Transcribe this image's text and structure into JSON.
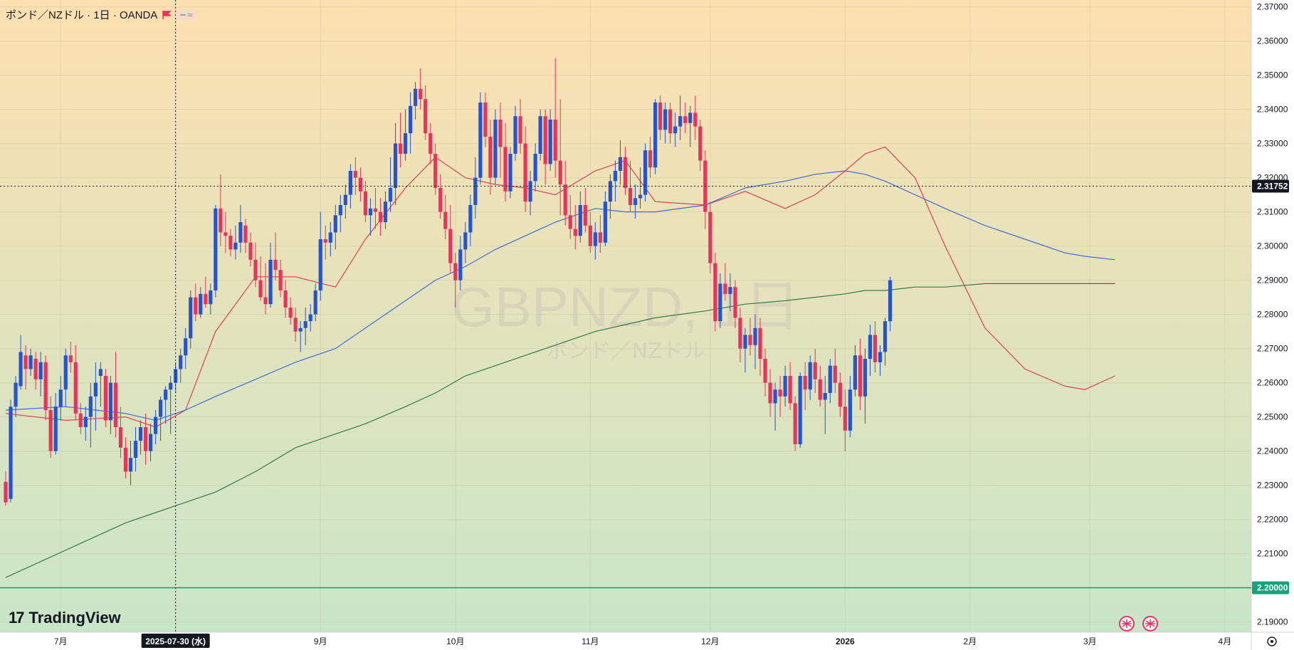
{
  "header": {
    "title": "ポンド／NZドル · 1日 · OANDA",
    "pill_minus": "━",
    "pill_wave": "≈"
  },
  "watermark": {
    "symbol": "GBPNZD, 1日",
    "name": "ポンド／NZドル"
  },
  "branding": {
    "logo_mark": "17",
    "logo_text": "TradingView"
  },
  "colors": {
    "up": "#2454d3",
    "down": "#e8345a",
    "ma_short": "#e0405a",
    "ma_mid": "#3b6de0",
    "ma_long": "#2e7d4f",
    "hline": "#14a37a",
    "bg_top": "#fde0b0",
    "bg_bottom": "#c9e6c8"
  },
  "crosshair": {
    "date_label": "2025-07-30 (水)",
    "price_label": "2.31752"
  },
  "chart_data": {
    "type": "candlestick",
    "ylim": [
      2.187,
      2.372
    ],
    "yticks": [
      2.19,
      2.2,
      2.21,
      2.22,
      2.23,
      2.24,
      2.25,
      2.26,
      2.27,
      2.28,
      2.29,
      2.3,
      2.31,
      2.32,
      2.33,
      2.34,
      2.35,
      2.36,
      2.37
    ],
    "ytick_labels": [
      "2.19000",
      "2.20000",
      "2.21000",
      "2.22000",
      "2.23000",
      "2.24000",
      "2.25000",
      "2.26000",
      "2.27000",
      "2.28000",
      "2.29000",
      "2.30000",
      "2.31000",
      "2.32000",
      "2.33000",
      "2.34000",
      "2.35000",
      "2.36000",
      "2.37000"
    ],
    "xaxis": [
      {
        "label": "7月",
        "bar": 11
      },
      {
        "label": "2025-07-30 (水)",
        "bar": 34
      },
      {
        "label": "9月",
        "bar": 63
      },
      {
        "label": "10月",
        "bar": 90
      },
      {
        "label": "11月",
        "bar": 117
      },
      {
        "label": "12月",
        "bar": 141
      },
      {
        "label": "2026",
        "bar": 168
      },
      {
        "label": "2月",
        "bar": 193
      },
      {
        "label": "3月",
        "bar": 217
      },
      {
        "label": "4月",
        "bar": 244
      }
    ],
    "horizontal_line": {
      "value": 2.2,
      "label": "2.20000"
    },
    "crosshair_value": 2.31752,
    "candles": [
      [
        2.231,
        2.234,
        2.224,
        2.225
      ],
      [
        2.226,
        2.255,
        2.225,
        2.253
      ],
      [
        2.253,
        2.262,
        2.25,
        2.26
      ],
      [
        2.259,
        2.274,
        2.258,
        2.269
      ],
      [
        2.268,
        2.271,
        2.258,
        2.264
      ],
      [
        2.264,
        2.27,
        2.262,
        2.268
      ],
      [
        2.267,
        2.269,
        2.258,
        2.261
      ],
      [
        2.261,
        2.269,
        2.256,
        2.266
      ],
      [
        2.266,
        2.268,
        2.249,
        2.252
      ],
      [
        2.252,
        2.256,
        2.238,
        2.24
      ],
      [
        2.24,
        2.257,
        2.239,
        2.253
      ],
      [
        2.253,
        2.262,
        2.249,
        2.258
      ],
      [
        2.258,
        2.27,
        2.253,
        2.268
      ],
      [
        2.268,
        2.272,
        2.263,
        2.266
      ],
      [
        2.266,
        2.271,
        2.249,
        2.251
      ],
      [
        2.251,
        2.254,
        2.245,
        2.247
      ],
      [
        2.247,
        2.253,
        2.243,
        2.25
      ],
      [
        2.25,
        2.26,
        2.241,
        2.256
      ],
      [
        2.256,
        2.266,
        2.246,
        2.26
      ],
      [
        2.262,
        2.266,
        2.253,
        2.264
      ],
      [
        2.262,
        2.264,
        2.247,
        2.249
      ],
      [
        2.249,
        2.262,
        2.245,
        2.26
      ],
      [
        2.26,
        2.269,
        2.244,
        2.247
      ],
      [
        2.247,
        2.253,
        2.238,
        2.241
      ],
      [
        2.241,
        2.244,
        2.232,
        2.234
      ],
      [
        2.234,
        2.243,
        2.23,
        2.238
      ],
      [
        2.238,
        2.247,
        2.234,
        2.243
      ],
      [
        2.243,
        2.249,
        2.239,
        2.247
      ],
      [
        2.247,
        2.251,
        2.236,
        2.24
      ],
      [
        2.24,
        2.248,
        2.237,
        2.245
      ],
      [
        2.245,
        2.252,
        2.242,
        2.25
      ],
      [
        2.25,
        2.256,
        2.243,
        2.255
      ],
      [
        2.255,
        2.259,
        2.248,
        2.258
      ],
      [
        2.258,
        2.262,
        2.245,
        2.26
      ],
      [
        2.26,
        2.266,
        2.257,
        2.264
      ],
      [
        2.264,
        2.27,
        2.26,
        2.268
      ],
      [
        2.268,
        2.276,
        2.264,
        2.273
      ],
      [
        2.273,
        2.287,
        2.27,
        2.285
      ],
      [
        2.285,
        2.289,
        2.278,
        2.28
      ],
      [
        2.28,
        2.288,
        2.279,
        2.286
      ],
      [
        2.286,
        2.291,
        2.282,
        2.283
      ],
      [
        2.283,
        2.289,
        2.28,
        2.287
      ],
      [
        2.287,
        2.312,
        2.285,
        2.311
      ],
      [
        2.311,
        2.321,
        2.3,
        2.304
      ],
      [
        2.304,
        2.31,
        2.298,
        2.303
      ],
      [
        2.303,
        2.305,
        2.297,
        2.299
      ],
      [
        2.299,
        2.306,
        2.296,
        2.301
      ],
      [
        2.301,
        2.312,
        2.298,
        2.307
      ],
      [
        2.306,
        2.308,
        2.298,
        2.301
      ],
      [
        2.301,
        2.304,
        2.294,
        2.296
      ],
      [
        2.296,
        2.301,
        2.288,
        2.29
      ],
      [
        2.29,
        2.297,
        2.284,
        2.285
      ],
      [
        2.285,
        2.295,
        2.28,
        2.283
      ],
      [
        2.283,
        2.301,
        2.282,
        2.296
      ],
      [
        2.296,
        2.304,
        2.29,
        2.293
      ],
      [
        2.293,
        2.296,
        2.285,
        2.287
      ],
      [
        2.287,
        2.29,
        2.279,
        2.282
      ],
      [
        2.282,
        2.285,
        2.277,
        2.279
      ],
      [
        2.279,
        2.282,
        2.272,
        2.275
      ],
      [
        2.275,
        2.278,
        2.269,
        2.276
      ],
      [
        2.276,
        2.282,
        2.271,
        2.278
      ],
      [
        2.278,
        2.283,
        2.275,
        2.28
      ],
      [
        2.28,
        2.289,
        2.278,
        2.287
      ],
      [
        2.287,
        2.31,
        2.284,
        2.302
      ],
      [
        2.302,
        2.306,
        2.296,
        2.301
      ],
      [
        2.301,
        2.307,
        2.297,
        2.304
      ],
      [
        2.304,
        2.312,
        2.299,
        2.309
      ],
      [
        2.309,
        2.315,
        2.304,
        2.312
      ],
      [
        2.312,
        2.318,
        2.308,
        2.315
      ],
      [
        2.315,
        2.324,
        2.311,
        2.322
      ],
      [
        2.322,
        2.326,
        2.315,
        2.32
      ],
      [
        2.32,
        2.323,
        2.313,
        2.316
      ],
      [
        2.316,
        2.319,
        2.307,
        2.309
      ],
      [
        2.309,
        2.314,
        2.303,
        2.311
      ],
      [
        2.311,
        2.317,
        2.305,
        2.31
      ],
      [
        2.31,
        2.314,
        2.303,
        2.307
      ],
      [
        2.307,
        2.316,
        2.305,
        2.313
      ],
      [
        2.313,
        2.326,
        2.31,
        2.317
      ],
      [
        2.317,
        2.336,
        2.312,
        2.33
      ],
      [
        2.33,
        2.339,
        2.323,
        2.327
      ],
      [
        2.327,
        2.34,
        2.325,
        2.333
      ],
      [
        2.333,
        2.345,
        2.327,
        2.341
      ],
      [
        2.341,
        2.348,
        2.337,
        2.346
      ],
      [
        2.346,
        2.352,
        2.34,
        2.343
      ],
      [
        2.343,
        2.347,
        2.331,
        2.333
      ],
      [
        2.333,
        2.336,
        2.324,
        2.327
      ],
      [
        2.327,
        2.33,
        2.315,
        2.317
      ],
      [
        2.317,
        2.321,
        2.308,
        2.31
      ],
      [
        2.31,
        2.315,
        2.302,
        2.305
      ],
      [
        2.305,
        2.312,
        2.292,
        2.295
      ],
      [
        2.295,
        2.298,
        2.282,
        2.29
      ],
      [
        2.29,
        2.303,
        2.287,
        2.299
      ],
      [
        2.299,
        2.307,
        2.295,
        2.304
      ],
      [
        2.304,
        2.315,
        2.3,
        2.312
      ],
      [
        2.312,
        2.326,
        2.308,
        2.32
      ],
      [
        2.32,
        2.345,
        2.318,
        2.342
      ],
      [
        2.342,
        2.345,
        2.329,
        2.332
      ],
      [
        2.332,
        2.337,
        2.315,
        2.32
      ],
      [
        2.32,
        2.34,
        2.318,
        2.337
      ],
      [
        2.337,
        2.342,
        2.32,
        2.329
      ],
      [
        2.329,
        2.336,
        2.313,
        2.316
      ],
      [
        2.316,
        2.329,
        2.314,
        2.327
      ],
      [
        2.327,
        2.341,
        2.325,
        2.338
      ],
      [
        2.338,
        2.343,
        2.327,
        2.33
      ],
      [
        2.33,
        2.335,
        2.31,
        2.313
      ],
      [
        2.313,
        2.322,
        2.309,
        2.319
      ],
      [
        2.319,
        2.33,
        2.316,
        2.327
      ],
      [
        2.327,
        2.34,
        2.325,
        2.338
      ],
      [
        2.338,
        2.34,
        2.318,
        2.324
      ],
      [
        2.324,
        2.34,
        2.322,
        2.337
      ],
      [
        2.337,
        2.355,
        2.32,
        2.325
      ],
      [
        2.325,
        2.343,
        2.309,
        2.318
      ],
      [
        2.318,
        2.325,
        2.306,
        2.309
      ],
      [
        2.309,
        2.315,
        2.302,
        2.305
      ],
      [
        2.305,
        2.312,
        2.299,
        2.303
      ],
      [
        2.303,
        2.316,
        2.301,
        2.312
      ],
      [
        2.312,
        2.317,
        2.304,
        2.306
      ],
      [
        2.306,
        2.31,
        2.298,
        2.3
      ],
      [
        2.3,
        2.307,
        2.296,
        2.304
      ],
      [
        2.304,
        2.309,
        2.298,
        2.301
      ],
      [
        2.301,
        2.316,
        2.3,
        2.313
      ],
      [
        2.313,
        2.321,
        2.308,
        2.319
      ],
      [
        2.319,
        2.325,
        2.313,
        2.322
      ],
      [
        2.322,
        2.331,
        2.318,
        2.326
      ],
      [
        2.326,
        2.329,
        2.315,
        2.317
      ],
      [
        2.317,
        2.325,
        2.31,
        2.312
      ],
      [
        2.312,
        2.318,
        2.308,
        2.314
      ],
      [
        2.314,
        2.323,
        2.311,
        2.315
      ],
      [
        2.315,
        2.33,
        2.313,
        2.328
      ],
      [
        2.328,
        2.332,
        2.32,
        2.323
      ],
      [
        2.323,
        2.343,
        2.321,
        2.342
      ],
      [
        2.342,
        2.344,
        2.331,
        2.334
      ],
      [
        2.334,
        2.342,
        2.33,
        2.34
      ],
      [
        2.34,
        2.342,
        2.33,
        2.333
      ],
      [
        2.333,
        2.339,
        2.329,
        2.335
      ],
      [
        2.335,
        2.344,
        2.331,
        2.338
      ],
      [
        2.338,
        2.342,
        2.333,
        2.336
      ],
      [
        2.336,
        2.341,
        2.329,
        2.339
      ],
      [
        2.339,
        2.344,
        2.331,
        2.335
      ],
      [
        2.335,
        2.337,
        2.322,
        2.325
      ],
      [
        2.325,
        2.328,
        2.305,
        2.31
      ],
      [
        2.31,
        2.313,
        2.292,
        2.295
      ],
      [
        2.295,
        2.298,
        2.275,
        2.278
      ],
      [
        2.278,
        2.292,
        2.276,
        2.289
      ],
      [
        2.289,
        2.295,
        2.284,
        2.286
      ],
      [
        2.286,
        2.292,
        2.281,
        2.288
      ],
      [
        2.288,
        2.29,
        2.276,
        2.279
      ],
      [
        2.279,
        2.282,
        2.266,
        2.27
      ],
      [
        2.27,
        2.276,
        2.263,
        2.274
      ],
      [
        2.274,
        2.279,
        2.268,
        2.271
      ],
      [
        2.271,
        2.28,
        2.264,
        2.276
      ],
      [
        2.276,
        2.279,
        2.262,
        2.267
      ],
      [
        2.267,
        2.27,
        2.256,
        2.26
      ],
      [
        2.26,
        2.264,
        2.25,
        2.254
      ],
      [
        2.254,
        2.26,
        2.246,
        2.258
      ],
      [
        2.258,
        2.262,
        2.25,
        2.256
      ],
      [
        2.256,
        2.265,
        2.253,
        2.262
      ],
      [
        2.262,
        2.266,
        2.252,
        2.254
      ],
      [
        2.254,
        2.256,
        2.24,
        2.242
      ],
      [
        2.242,
        2.263,
        2.241,
        2.262
      ],
      [
        2.262,
        2.266,
        2.252,
        2.258
      ],
      [
        2.258,
        2.268,
        2.255,
        2.266
      ],
      [
        2.266,
        2.27,
        2.257,
        2.261
      ],
      [
        2.261,
        2.265,
        2.253,
        2.255
      ],
      [
        2.255,
        2.262,
        2.245,
        2.257
      ],
      [
        2.257,
        2.267,
        2.254,
        2.265
      ],
      [
        2.265,
        2.27,
        2.257,
        2.26
      ],
      [
        2.26,
        2.263,
        2.25,
        2.253
      ],
      [
        2.253,
        2.258,
        2.24,
        2.246
      ],
      [
        2.246,
        2.262,
        2.244,
        2.258
      ],
      [
        2.258,
        2.271,
        2.256,
        2.268
      ],
      [
        2.268,
        2.273,
        2.252,
        2.256
      ],
      [
        2.256,
        2.27,
        2.248,
        2.267
      ],
      [
        2.267,
        2.277,
        2.262,
        2.274
      ],
      [
        2.274,
        2.278,
        2.263,
        2.266
      ],
      [
        2.266,
        2.271,
        2.262,
        2.269
      ],
      [
        2.269,
        2.279,
        2.265,
        2.278
      ],
      [
        2.278,
        2.291,
        2.275,
        2.29
      ]
    ],
    "series": [
      {
        "name": "",
        "color": "#e0405a",
        "x": [
          0,
          12,
          24,
          30,
          36,
          42,
          50,
          58,
          66,
          72,
          80,
          86,
          92,
          98,
          104,
          110,
          118,
          124,
          130,
          140,
          148,
          156,
          162,
          168,
          172,
          176,
          182,
          188,
          196,
          204,
          212,
          216,
          222
        ],
        "values": [
          2.251,
          2.249,
          2.25,
          2.247,
          2.252,
          2.275,
          2.291,
          2.291,
          2.288,
          2.302,
          2.317,
          2.326,
          2.32,
          2.318,
          2.317,
          2.315,
          2.322,
          2.325,
          2.313,
          2.312,
          2.316,
          2.311,
          2.315,
          2.322,
          2.327,
          2.329,
          2.32,
          2.3,
          2.276,
          2.264,
          2.259,
          2.258,
          2.262
        ]
      },
      {
        "name": "",
        "color": "#3b6de0",
        "x": [
          0,
          12,
          24,
          30,
          36,
          42,
          50,
          58,
          66,
          72,
          80,
          86,
          92,
          98,
          104,
          110,
          118,
          124,
          130,
          140,
          148,
          156,
          162,
          168,
          172,
          176,
          182,
          188,
          196,
          204,
          212,
          216,
          222
        ],
        "values": [
          2.252,
          2.253,
          2.251,
          2.249,
          2.252,
          2.256,
          2.261,
          2.266,
          2.27,
          2.276,
          2.284,
          2.29,
          2.294,
          2.299,
          2.303,
          2.307,
          2.311,
          2.31,
          2.31,
          2.312,
          2.317,
          2.319,
          2.321,
          2.322,
          2.321,
          2.319,
          2.315,
          2.311,
          2.306,
          2.302,
          2.298,
          2.297,
          2.296
        ]
      },
      {
        "name": "",
        "color": "#2e7d4f",
        "x": [
          0,
          12,
          24,
          30,
          36,
          42,
          50,
          58,
          66,
          72,
          80,
          86,
          92,
          98,
          104,
          110,
          118,
          124,
          130,
          140,
          148,
          156,
          162,
          168,
          172,
          176,
          182,
          188,
          196,
          204,
          212,
          216,
          222
        ],
        "values": [
          2.203,
          2.211,
          2.219,
          2.222,
          2.225,
          2.228,
          2.234,
          2.241,
          2.245,
          2.248,
          2.253,
          2.257,
          2.262,
          2.265,
          2.268,
          2.271,
          2.275,
          2.277,
          2.279,
          2.281,
          2.283,
          2.284,
          2.285,
          2.286,
          2.287,
          2.287,
          2.288,
          2.288,
          2.289,
          2.289,
          2.289,
          2.289,
          2.289
        ]
      }
    ]
  }
}
